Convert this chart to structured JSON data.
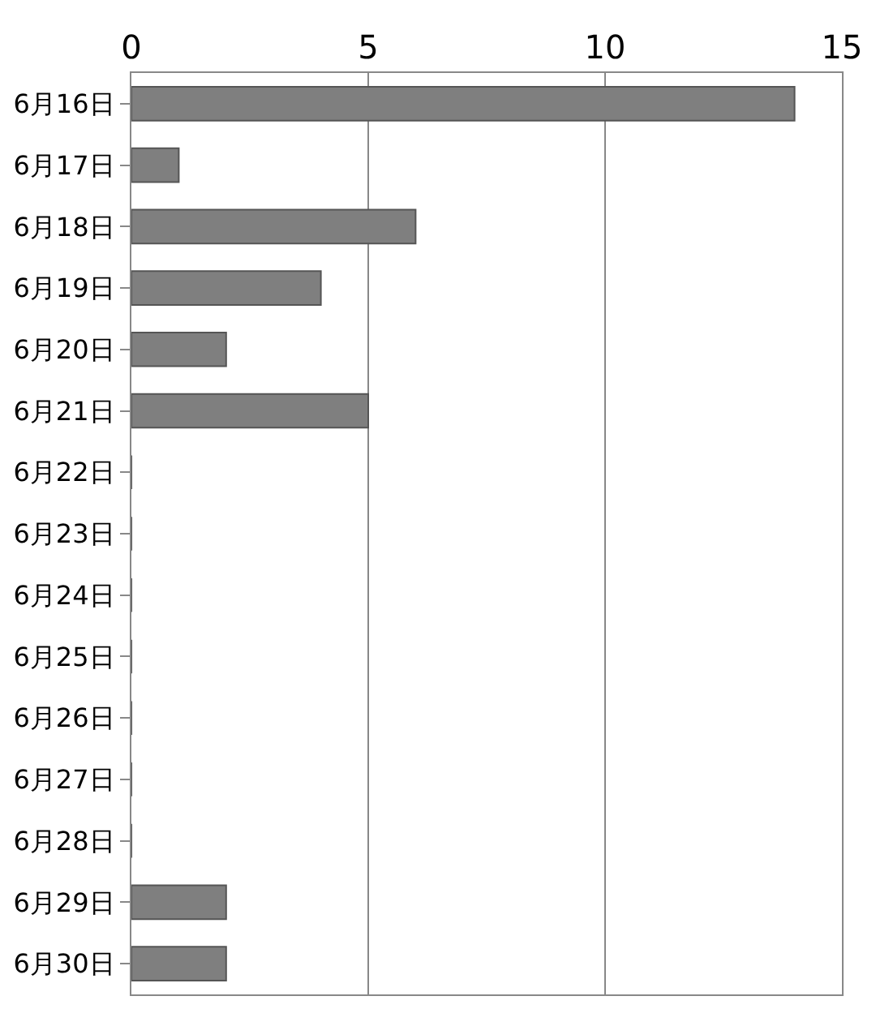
{
  "chart_data": {
    "type": "bar",
    "orientation": "horizontal",
    "categories": [
      "6月16日",
      "6月17日",
      "6月18日",
      "6月19日",
      "6月20日",
      "6月21日",
      "6月22日",
      "6月23日",
      "6月24日",
      "6月25日",
      "6月26日",
      "6月27日",
      "6月28日",
      "6月29日",
      "6月30日"
    ],
    "values": [
      14,
      1,
      6,
      4,
      2,
      5,
      0,
      0,
      0,
      0,
      0,
      0,
      0,
      2,
      2
    ],
    "color": "#7f7f7f",
    "xlim": [
      0,
      15
    ],
    "xticks": [
      0,
      5,
      10,
      15
    ],
    "grid": "x",
    "legend": false
  }
}
